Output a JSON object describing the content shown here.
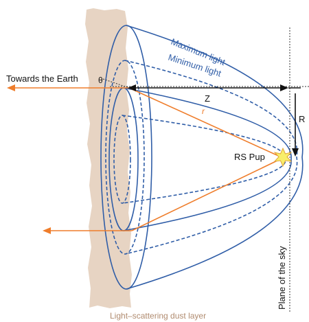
{
  "labels": {
    "max_light": "Maximum light",
    "min_light": "Minimum light",
    "towards_earth": "Towards the Earth",
    "theta": "θ",
    "z": "Z",
    "r": "r",
    "R": "R",
    "star": "RS Pup",
    "plane_of_sky": "Plane of the sky",
    "dust_layer": "Light–scattering dust layer"
  },
  "colors": {
    "dust": "#e7d4c3",
    "ellipse": "#2f5da7",
    "ray": "#ef7d2b",
    "star_fill": "#f8ee6a",
    "star_stroke": "#e0a63a",
    "caption": "#b08b6f",
    "text": "#111111",
    "guide": "#333333"
  }
}
